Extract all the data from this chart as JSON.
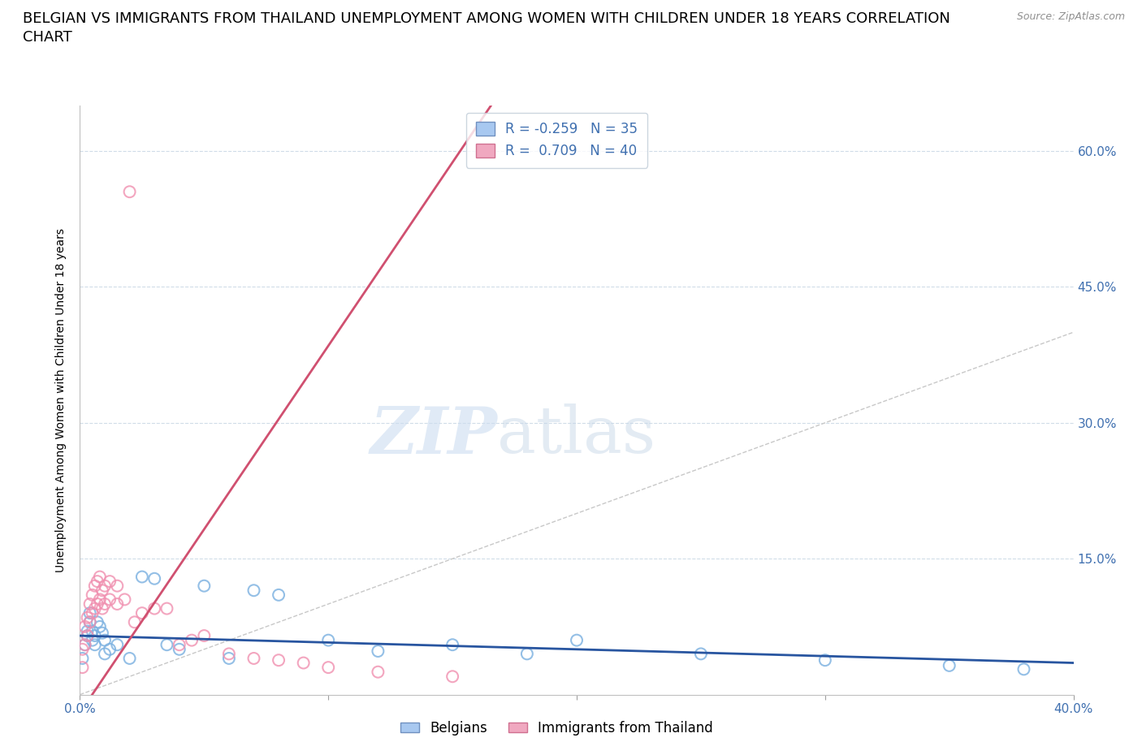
{
  "title_line1": "BELGIAN VS IMMIGRANTS FROM THAILAND UNEMPLOYMENT AMONG WOMEN WITH CHILDREN UNDER 18 YEARS CORRELATION",
  "title_line2": "CHART",
  "source": "Source: ZipAtlas.com",
  "ylabel": "Unemployment Among Women with Children Under 18 years",
  "xlim": [
    0.0,
    0.4
  ],
  "ylim": [
    0.0,
    0.65
  ],
  "yticks": [
    0.0,
    0.15,
    0.3,
    0.45,
    0.6
  ],
  "ytick_labels": [
    "",
    "15.0%",
    "30.0%",
    "45.0%",
    "60.0%"
  ],
  "xtick_labels_show": [
    "0.0%",
    "40.0%"
  ],
  "watermark_zip": "ZIP",
  "watermark_atlas": "atlas",
  "legend_entries": [
    {
      "label": "Belgians",
      "color": "#a8c8f0"
    },
    {
      "label": "Immigrants from Thailand",
      "color": "#f0a8c0"
    }
  ],
  "R_belgian": -0.259,
  "N_belgian": 35,
  "R_thailand": 0.709,
  "N_thailand": 40,
  "belgian_scatter_color": "#7ab0e0",
  "thailand_scatter_color": "#f090b0",
  "belgian_line_color": "#2855a0",
  "thailand_line_color": "#d05070",
  "diagonal_color": "#c8c8c8",
  "belgian_scatter_x": [
    0.001,
    0.002,
    0.003,
    0.003,
    0.004,
    0.004,
    0.005,
    0.005,
    0.006,
    0.006,
    0.007,
    0.008,
    0.009,
    0.01,
    0.01,
    0.012,
    0.015,
    0.02,
    0.025,
    0.03,
    0.035,
    0.04,
    0.05,
    0.06,
    0.07,
    0.08,
    0.1,
    0.12,
    0.15,
    0.18,
    0.2,
    0.25,
    0.3,
    0.35,
    0.38
  ],
  "belgian_scatter_y": [
    0.04,
    0.055,
    0.065,
    0.07,
    0.08,
    0.09,
    0.06,
    0.07,
    0.055,
    0.065,
    0.08,
    0.075,
    0.068,
    0.06,
    0.045,
    0.05,
    0.055,
    0.04,
    0.13,
    0.128,
    0.055,
    0.05,
    0.12,
    0.04,
    0.115,
    0.11,
    0.06,
    0.048,
    0.055,
    0.045,
    0.06,
    0.045,
    0.038,
    0.032,
    0.028
  ],
  "thailand_scatter_x": [
    0.001,
    0.001,
    0.002,
    0.002,
    0.003,
    0.003,
    0.004,
    0.004,
    0.005,
    0.005,
    0.006,
    0.006,
    0.007,
    0.007,
    0.008,
    0.008,
    0.009,
    0.009,
    0.01,
    0.01,
    0.012,
    0.012,
    0.015,
    0.015,
    0.018,
    0.02,
    0.022,
    0.025,
    0.03,
    0.035,
    0.04,
    0.045,
    0.05,
    0.06,
    0.07,
    0.08,
    0.09,
    0.1,
    0.12,
    0.15
  ],
  "thailand_scatter_y": [
    0.03,
    0.05,
    0.055,
    0.075,
    0.065,
    0.085,
    0.08,
    0.1,
    0.09,
    0.11,
    0.095,
    0.12,
    0.1,
    0.125,
    0.105,
    0.13,
    0.095,
    0.115,
    0.1,
    0.12,
    0.105,
    0.125,
    0.1,
    0.12,
    0.105,
    0.555,
    0.08,
    0.09,
    0.095,
    0.095,
    0.055,
    0.06,
    0.065,
    0.045,
    0.04,
    0.038,
    0.035,
    0.03,
    0.025,
    0.02
  ],
  "title_fontsize": 13,
  "axis_fontsize": 10,
  "tick_fontsize": 11,
  "legend_fontsize": 12,
  "source_fontsize": 9
}
